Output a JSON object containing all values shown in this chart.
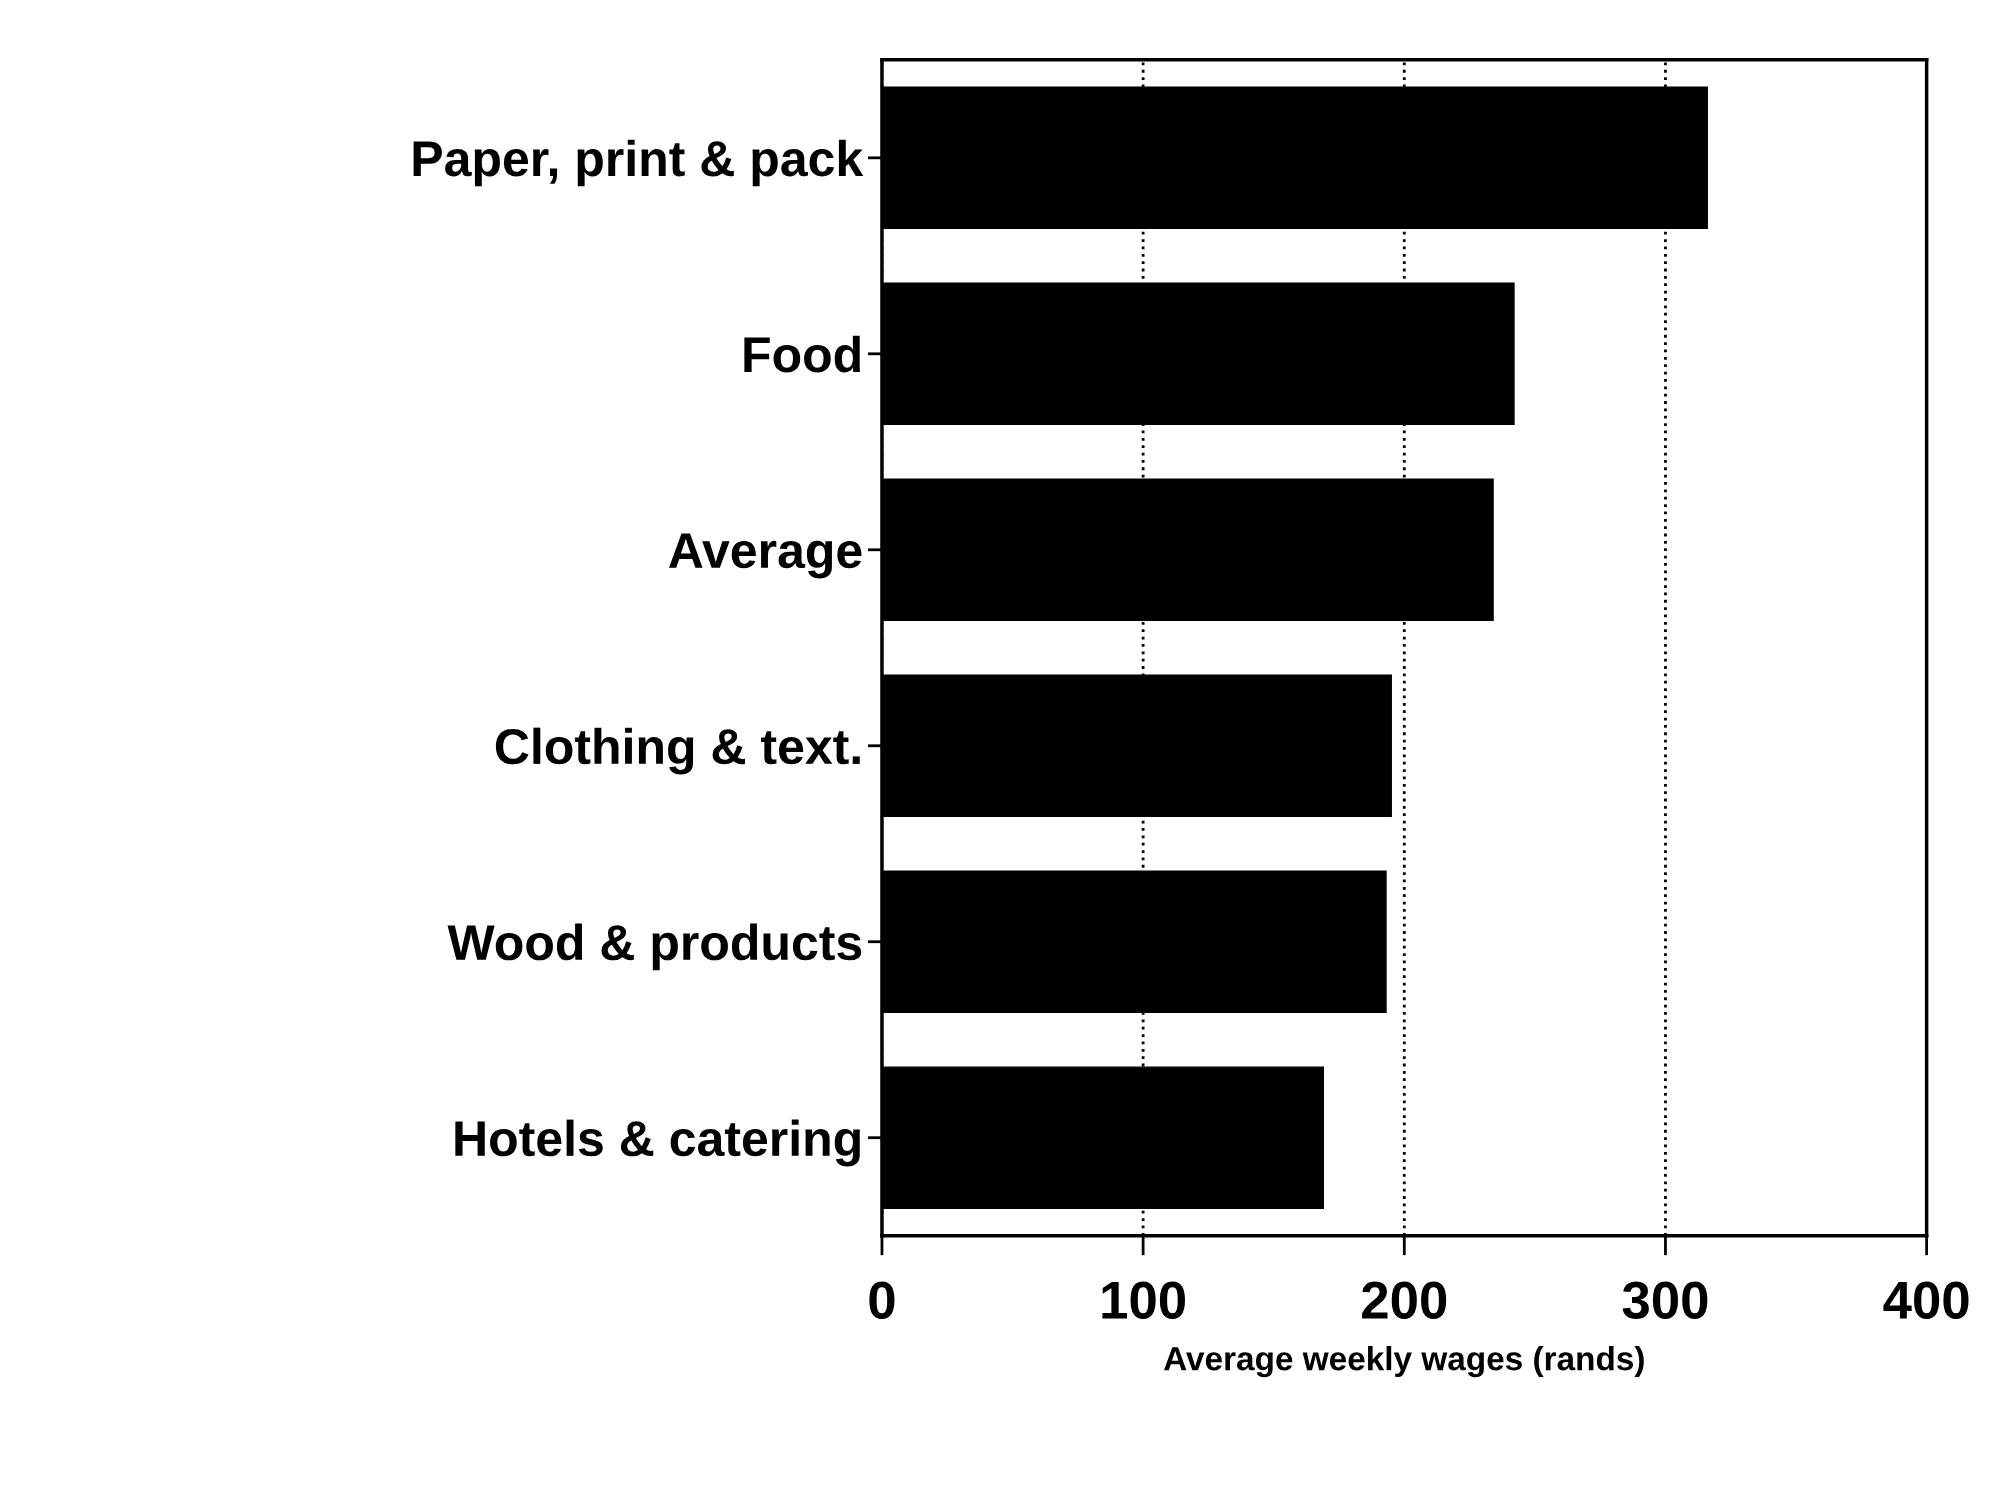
{
  "chart_data": {
    "type": "bar",
    "orientation": "horizontal",
    "xlabel": "Average weekly wages (rands)",
    "categories": [
      "Paper, print & pack",
      "Food",
      "Average",
      "Clothing & text.",
      "Wood & products",
      "Hotels & catering"
    ],
    "values": [
      316,
      242,
      234,
      195,
      193,
      169
    ],
    "color": "#000000",
    "xlim": [
      0,
      400
    ],
    "xticks": [
      0,
      100,
      200,
      300,
      400
    ],
    "grid": "x"
  }
}
